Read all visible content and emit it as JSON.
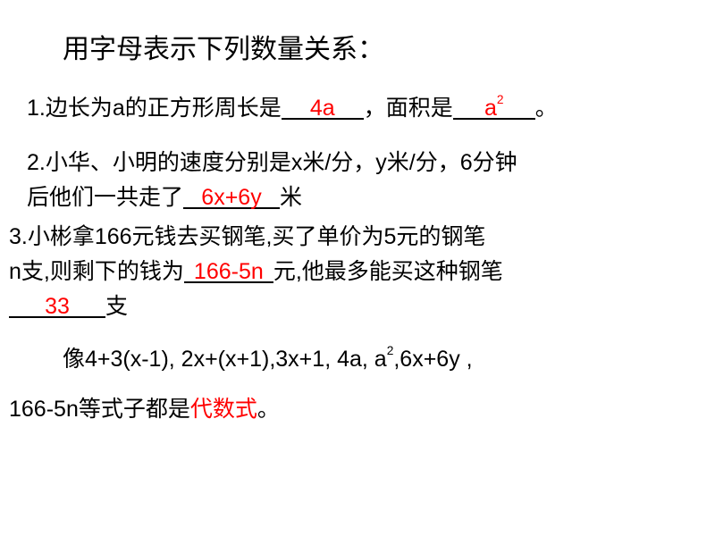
{
  "title": "用字母表示下列数量关系：",
  "q1": {
    "prefix": "1.边长为a的正方形周长是",
    "ans1": "4a",
    "mid": "，面积是",
    "ans2_base": "a",
    "ans2_exp": "2",
    "suffix": "。"
  },
  "q2": {
    "line1": "2.小华、小明的速度分别是x米/分，y米/分，6分钟",
    "prefix2": "后他们一共走了",
    "ans": "6x+6y",
    "suffix2": "米"
  },
  "q3": {
    "line1": "3.小彬拿166元钱去买钢笔,买了单价为5元的钢笔",
    "prefix2": "n支,则剩下的钱为",
    "ans1": "166-5n",
    "mid2": "元,他最多能买这种钢笔",
    "ans2": "33",
    "suffix3": "支"
  },
  "summary": {
    "line1_a": "像4+3(x-1),  2x+(x+1),3x+1,  4a, a",
    "line1_exp": "2",
    "line1_b": ",6x+6y ,",
    "line2_a": "166-5n等式子都是",
    "line2_red": "代数式",
    "line2_b": "。"
  },
  "colors": {
    "text": "#000000",
    "answer": "#ff0000",
    "background": "#ffffff"
  },
  "fontsize": {
    "title": 30,
    "body": 25
  }
}
